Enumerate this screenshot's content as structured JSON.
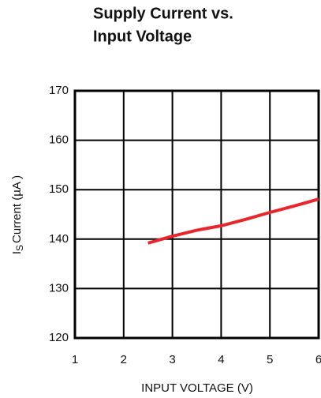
{
  "chart_data": {
    "type": "line",
    "title": [
      "Supply Current vs.",
      "Input Voltage"
    ],
    "xlabel": "INPUT VOLTAGE (V)",
    "ylabel": {
      "main": "I",
      "sub": "S",
      "rest": "Current (µA )"
    },
    "x": [
      2.5,
      3,
      3.5,
      4,
      4.5,
      5,
      5.5,
      6
    ],
    "series": [
      {
        "name": null,
        "color": "#e8262b",
        "values": [
          139.2,
          140.6,
          141.8,
          142.7,
          144.0,
          145.4,
          146.7,
          148.1
        ]
      }
    ],
    "xlim": [
      1,
      6
    ],
    "xticks": [
      1,
      2,
      3,
      4,
      5,
      6
    ],
    "ylim": [
      120,
      170
    ],
    "yticks": [
      120,
      130,
      140,
      150,
      160,
      170
    ],
    "grid": true
  }
}
